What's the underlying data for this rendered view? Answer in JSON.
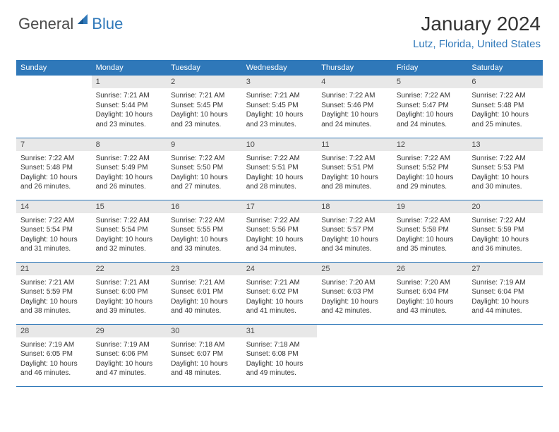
{
  "logo": {
    "text1": "General",
    "text2": "Blue",
    "color1": "#4a4a4a",
    "color2": "#2f78b9"
  },
  "title": "January 2024",
  "location": "Lutz, Florida, United States",
  "colors": {
    "header_bg": "#2f78b9",
    "header_fg": "#ffffff",
    "daynum_bg": "#e8e8e8",
    "border": "#2f78b9",
    "text": "#333333"
  },
  "day_headers": [
    "Sunday",
    "Monday",
    "Tuesday",
    "Wednesday",
    "Thursday",
    "Friday",
    "Saturday"
  ],
  "weeks": [
    [
      null,
      {
        "n": "1",
        "sr": "7:21 AM",
        "ss": "5:44 PM",
        "dl": "10 hours and 23 minutes."
      },
      {
        "n": "2",
        "sr": "7:21 AM",
        "ss": "5:45 PM",
        "dl": "10 hours and 23 minutes."
      },
      {
        "n": "3",
        "sr": "7:21 AM",
        "ss": "5:45 PM",
        "dl": "10 hours and 23 minutes."
      },
      {
        "n": "4",
        "sr": "7:22 AM",
        "ss": "5:46 PM",
        "dl": "10 hours and 24 minutes."
      },
      {
        "n": "5",
        "sr": "7:22 AM",
        "ss": "5:47 PM",
        "dl": "10 hours and 24 minutes."
      },
      {
        "n": "6",
        "sr": "7:22 AM",
        "ss": "5:48 PM",
        "dl": "10 hours and 25 minutes."
      }
    ],
    [
      {
        "n": "7",
        "sr": "7:22 AM",
        "ss": "5:48 PM",
        "dl": "10 hours and 26 minutes."
      },
      {
        "n": "8",
        "sr": "7:22 AM",
        "ss": "5:49 PM",
        "dl": "10 hours and 26 minutes."
      },
      {
        "n": "9",
        "sr": "7:22 AM",
        "ss": "5:50 PM",
        "dl": "10 hours and 27 minutes."
      },
      {
        "n": "10",
        "sr": "7:22 AM",
        "ss": "5:51 PM",
        "dl": "10 hours and 28 minutes."
      },
      {
        "n": "11",
        "sr": "7:22 AM",
        "ss": "5:51 PM",
        "dl": "10 hours and 28 minutes."
      },
      {
        "n": "12",
        "sr": "7:22 AM",
        "ss": "5:52 PM",
        "dl": "10 hours and 29 minutes."
      },
      {
        "n": "13",
        "sr": "7:22 AM",
        "ss": "5:53 PM",
        "dl": "10 hours and 30 minutes."
      }
    ],
    [
      {
        "n": "14",
        "sr": "7:22 AM",
        "ss": "5:54 PM",
        "dl": "10 hours and 31 minutes."
      },
      {
        "n": "15",
        "sr": "7:22 AM",
        "ss": "5:54 PM",
        "dl": "10 hours and 32 minutes."
      },
      {
        "n": "16",
        "sr": "7:22 AM",
        "ss": "5:55 PM",
        "dl": "10 hours and 33 minutes."
      },
      {
        "n": "17",
        "sr": "7:22 AM",
        "ss": "5:56 PM",
        "dl": "10 hours and 34 minutes."
      },
      {
        "n": "18",
        "sr": "7:22 AM",
        "ss": "5:57 PM",
        "dl": "10 hours and 34 minutes."
      },
      {
        "n": "19",
        "sr": "7:22 AM",
        "ss": "5:58 PM",
        "dl": "10 hours and 35 minutes."
      },
      {
        "n": "20",
        "sr": "7:22 AM",
        "ss": "5:59 PM",
        "dl": "10 hours and 36 minutes."
      }
    ],
    [
      {
        "n": "21",
        "sr": "7:21 AM",
        "ss": "5:59 PM",
        "dl": "10 hours and 38 minutes."
      },
      {
        "n": "22",
        "sr": "7:21 AM",
        "ss": "6:00 PM",
        "dl": "10 hours and 39 minutes."
      },
      {
        "n": "23",
        "sr": "7:21 AM",
        "ss": "6:01 PM",
        "dl": "10 hours and 40 minutes."
      },
      {
        "n": "24",
        "sr": "7:21 AM",
        "ss": "6:02 PM",
        "dl": "10 hours and 41 minutes."
      },
      {
        "n": "25",
        "sr": "7:20 AM",
        "ss": "6:03 PM",
        "dl": "10 hours and 42 minutes."
      },
      {
        "n": "26",
        "sr": "7:20 AM",
        "ss": "6:04 PM",
        "dl": "10 hours and 43 minutes."
      },
      {
        "n": "27",
        "sr": "7:19 AM",
        "ss": "6:04 PM",
        "dl": "10 hours and 44 minutes."
      }
    ],
    [
      {
        "n": "28",
        "sr": "7:19 AM",
        "ss": "6:05 PM",
        "dl": "10 hours and 46 minutes."
      },
      {
        "n": "29",
        "sr": "7:19 AM",
        "ss": "6:06 PM",
        "dl": "10 hours and 47 minutes."
      },
      {
        "n": "30",
        "sr": "7:18 AM",
        "ss": "6:07 PM",
        "dl": "10 hours and 48 minutes."
      },
      {
        "n": "31",
        "sr": "7:18 AM",
        "ss": "6:08 PM",
        "dl": "10 hours and 49 minutes."
      },
      null,
      null,
      null
    ]
  ],
  "labels": {
    "sunrise": "Sunrise:",
    "sunset": "Sunset:",
    "daylight": "Daylight:"
  }
}
